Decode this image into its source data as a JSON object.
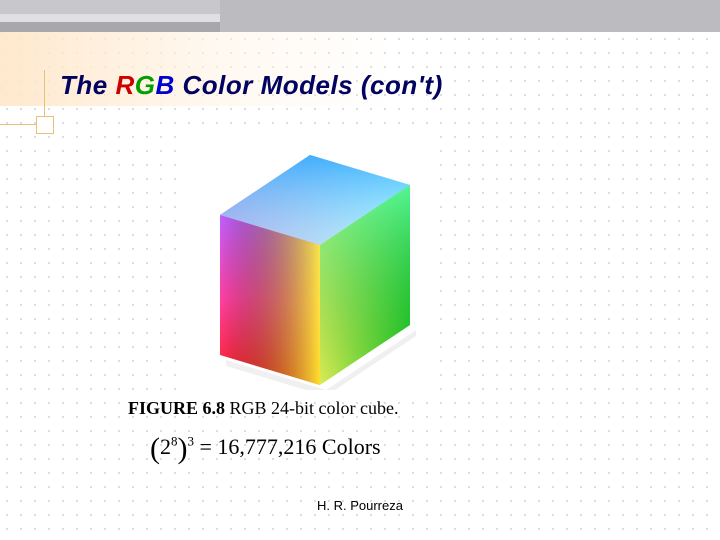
{
  "title": {
    "prefix": "The ",
    "r": "R",
    "g": "G",
    "b": "B",
    "suffix": " Color Models (con't)",
    "prefix_color": "#020260",
    "r_color": "#d00000",
    "g_color": "#00a000",
    "b_color": "#0000d0",
    "suffix_color": "#020260"
  },
  "figure": {
    "label_bold": "FIGURE 6.8",
    "label_rest": "  RGB 24-bit color cube."
  },
  "equation": {
    "base": "2",
    "inner_exp": "8",
    "outer_exp": "3",
    "rhs": " = 16,777,216  Colors"
  },
  "footer": {
    "text": "H. R. Pourreza"
  },
  "colors": {
    "background": "#ffffff",
    "grid_dot": "#d0d0d4",
    "accent": "#e8c078"
  },
  "cube": {
    "top_poly": "40,85 130,25 230,55 140,115",
    "front_poly": "40,85 140,115 140,255 40,225",
    "right_poly": "140,115 230,55 230,195 140,255",
    "corners": {
      "top_left": "#5040d0",
      "top_back": "#40b0ff",
      "top_right": "#60ff60",
      "top_front": "#ffffff",
      "bot_left_f": "#ff2020",
      "bot_front": "#ffff30",
      "bot_right": "#20c020",
      "mid_left": "#ff40ff"
    }
  }
}
